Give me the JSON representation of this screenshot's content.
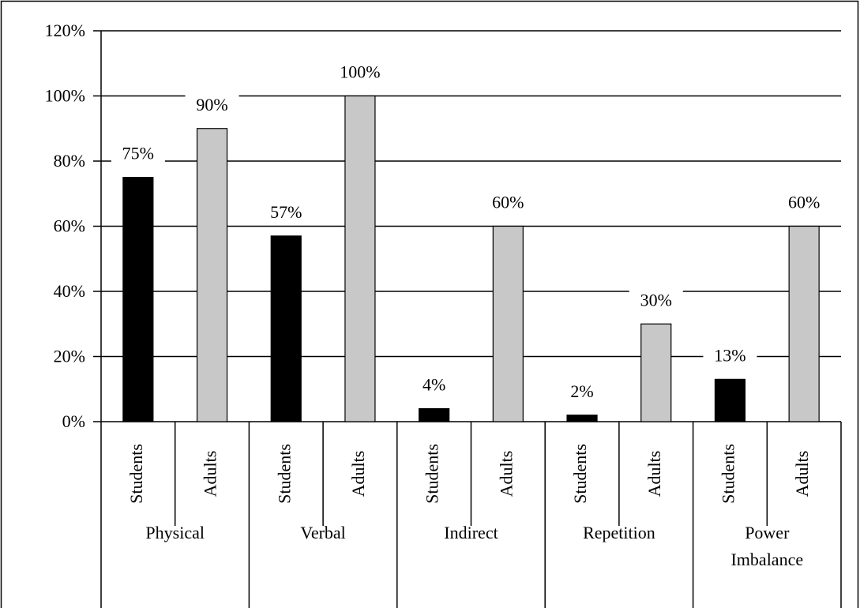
{
  "chart_data": {
    "type": "bar",
    "categories": [
      "Physical",
      "Verbal",
      "Indirect",
      "Repetition",
      "Power Imbalance"
    ],
    "series": [
      {
        "name": "Students",
        "color": "#000000",
        "values": [
          75,
          57,
          4,
          2,
          13
        ],
        "value_labels": [
          "75%",
          "57%",
          "4%",
          "2%",
          "13%"
        ]
      },
      {
        "name": "Adults",
        "color": "#c8c8c8",
        "values": [
          90,
          100,
          60,
          30,
          60
        ],
        "value_labels": [
          "90%",
          "100%",
          "60%",
          "30%",
          "60%"
        ]
      }
    ],
    "ylim": [
      0,
      120
    ],
    "yticks": [
      {
        "value": 0,
        "label": "0%"
      },
      {
        "value": 20,
        "label": "20%"
      },
      {
        "value": 40,
        "label": "40%"
      },
      {
        "value": 60,
        "label": "60%"
      },
      {
        "value": 80,
        "label": "80%"
      },
      {
        "value": 100,
        "label": "100%"
      },
      {
        "value": 120,
        "label": "120%"
      }
    ],
    "grid": true
  }
}
